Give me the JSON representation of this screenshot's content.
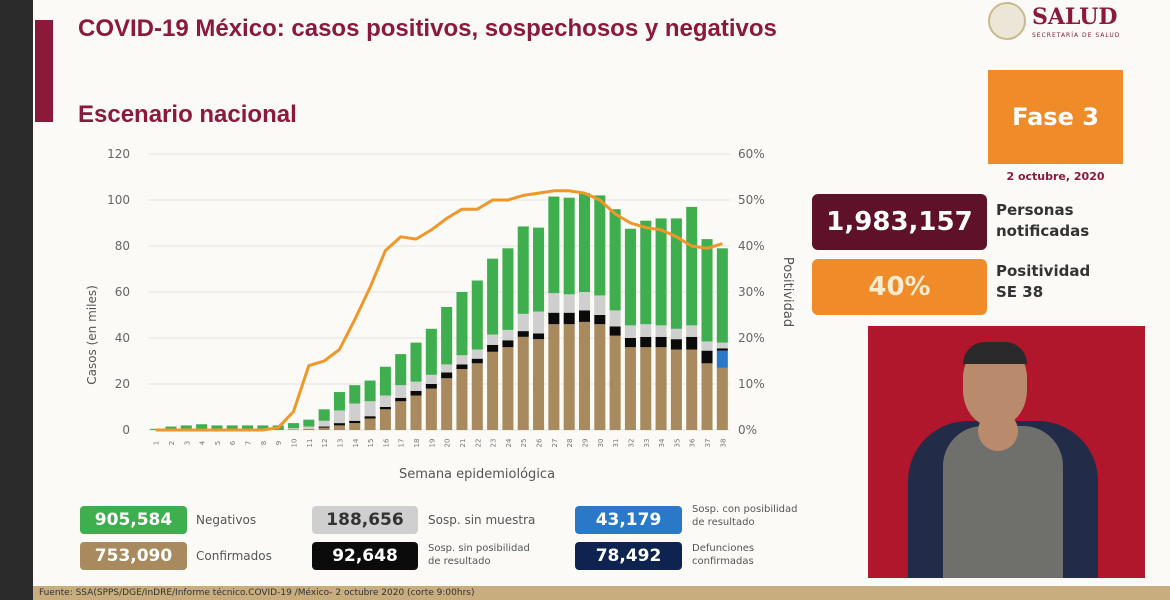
{
  "header": {
    "title": "COVID-19 México: casos positivos, sospechosos y negativos",
    "subtitle": "Escenario nacional",
    "logo_name": "SALUD",
    "logo_sub": "SECRETARÍA DE SALUD"
  },
  "side": {
    "fase": "Fase 3",
    "fecha": "2 octubre, 2020",
    "notificadas_value": "1,983,157",
    "notificadas_label1": "Personas",
    "notificadas_label2": "notificadas",
    "positividad_value": "40%",
    "positividad_label1": "Positividad",
    "positividad_label2": "SE 38"
  },
  "totals": [
    {
      "value": "905,584",
      "label": "Negativos",
      "color": "#3fae4f"
    },
    {
      "value": "753,090",
      "label": "Confirmados",
      "color": "#a88a5e"
    },
    {
      "value": "188,656",
      "label": "Sosp. sin muestra",
      "color": "#cfcfcf"
    },
    {
      "value": "92,648",
      "label": "Sosp. sin posibilidad",
      "label2": "de resultado",
      "color": "#0b0b0b"
    },
    {
      "value": "43,179",
      "label": "Sosp. con posibilidad",
      "label2": "de resultado",
      "color": "#2a79c8"
    },
    {
      "value": "78,492",
      "label": "Defunciones",
      "label2": "confirmadas",
      "color": "#0f2350"
    }
  ],
  "footer": "Fuente: SSA(SPPS/DGE/InDRE/Informe técnico.COVID-19 /México- 2 octubre 2020 (corte 9:00hrs)",
  "chart_data": {
    "type": "bar",
    "stacked": true,
    "xlabel": "Semana epidemiológica",
    "ylabel": "Casos (en miles)",
    "y2label": "Positividad",
    "ylim": [
      0,
      120
    ],
    "y2lim": [
      0,
      60
    ],
    "yticks": [
      "0",
      "20",
      "40",
      "60",
      "80",
      "100",
      "120"
    ],
    "y2ticks": [
      "0%",
      "10%",
      "20%",
      "30%",
      "40%",
      "50%",
      "60%"
    ],
    "categories": [
      "1",
      "2",
      "3",
      "4",
      "5",
      "6",
      "7",
      "8",
      "9",
      "10",
      "11",
      "12",
      "13",
      "14",
      "15",
      "16",
      "17",
      "18",
      "19",
      "20",
      "21",
      "22",
      "23",
      "24",
      "25",
      "26",
      "27",
      "28",
      "29",
      "30",
      "31",
      "32",
      "33",
      "34",
      "35",
      "36",
      "37",
      "38"
    ],
    "series": [
      {
        "name": "Confirmados",
        "color": "#a88a5e",
        "values": [
          0,
          0,
          0,
          0,
          0,
          0,
          0,
          0,
          0,
          0.3,
          0.5,
          1,
          2,
          3,
          5,
          9,
          12.5,
          15,
          18,
          22.5,
          26.5,
          29,
          34,
          36,
          40.5,
          39.5,
          46,
          46,
          47,
          46,
          41,
          36,
          36,
          36,
          35,
          35,
          29,
          27
        ]
      },
      {
        "name": "Sosp. con posibilidad de resultado",
        "color": "#2a79c8",
        "values": [
          0,
          0,
          0,
          0,
          0,
          0,
          0,
          0,
          0,
          0,
          0,
          0,
          0,
          0,
          0,
          0,
          0,
          0,
          0,
          0,
          0,
          0,
          0,
          0,
          0,
          0,
          0,
          0,
          0,
          0,
          0,
          0,
          0,
          0,
          0,
          0,
          0,
          7.5
        ]
      },
      {
        "name": "Sosp. sin posibilidad de resultado",
        "color": "#0b0b0b",
        "values": [
          0,
          0,
          0,
          0,
          0,
          0,
          0,
          0,
          0,
          0,
          0,
          0.5,
          1,
          1,
          1,
          1,
          1.5,
          2,
          2,
          2.5,
          2,
          2,
          3,
          3,
          2.5,
          2.5,
          5,
          5,
          5,
          4,
          4,
          4,
          4.5,
          4.5,
          4.5,
          5.5,
          5.5,
          1
        ]
      },
      {
        "name": "Sosp. sin muestra",
        "color": "#cfcfcf",
        "values": [
          0,
          0,
          0,
          0,
          0,
          0,
          0,
          0,
          0,
          0.5,
          1,
          2.5,
          5.5,
          7.5,
          6.5,
          5,
          5.5,
          4,
          4,
          3.5,
          4,
          4,
          4.5,
          4.5,
          7.5,
          9.5,
          8.5,
          8,
          8,
          8.5,
          7,
          5.5,
          5.5,
          5,
          4.5,
          5,
          4,
          2.5
        ]
      },
      {
        "name": "Negativos",
        "color": "#3fae4f",
        "values": [
          0.5,
          1.5,
          2,
          2.5,
          2,
          2,
          2,
          2,
          2,
          2.2,
          3,
          5,
          8,
          8,
          9,
          12.5,
          13.5,
          17,
          20,
          25,
          27.5,
          30,
          33,
          35.5,
          38,
          36.5,
          42,
          42,
          43,
          43.5,
          44,
          42,
          45,
          46.5,
          48,
          51.5,
          44.5,
          41
        ]
      }
    ],
    "line": {
      "name": "Positividad",
      "color": "#f0972a",
      "axis": "right",
      "values": [
        0,
        0,
        0,
        0,
        0,
        0,
        0,
        0,
        0.5,
        4,
        14,
        15,
        17.5,
        24,
        31,
        39,
        42,
        41.5,
        43.5,
        46,
        48,
        48,
        50,
        50,
        51,
        51.5,
        52,
        52,
        51.5,
        50,
        47,
        45,
        44,
        43.5,
        42,
        40,
        39.5,
        40.5
      ]
    },
    "grid": true
  }
}
